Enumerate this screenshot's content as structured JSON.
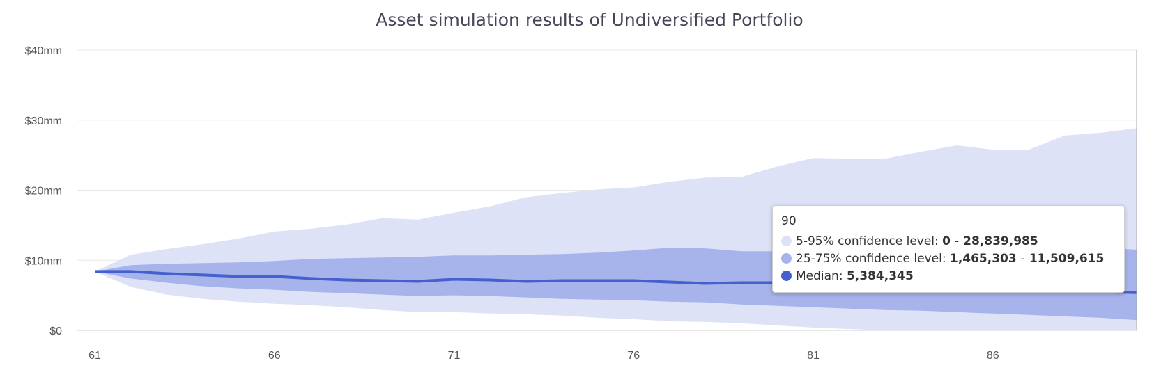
{
  "chart_data": {
    "type": "area",
    "title": "Asset simulation results of Undiversified Portfolio",
    "xlabel": "",
    "ylabel": "",
    "xlim": [
      61,
      90
    ],
    "ylim": [
      0,
      40000000
    ],
    "yticks": [
      {
        "value": 0,
        "label": "$0"
      },
      {
        "value": 10000000,
        "label": "$10mm"
      },
      {
        "value": 20000000,
        "label": "$20mm"
      },
      {
        "value": 30000000,
        "label": "$30mm"
      },
      {
        "value": 40000000,
        "label": "$40mm"
      }
    ],
    "xticks": [
      {
        "value": 61,
        "label": "61"
      },
      {
        "value": 66,
        "label": "66"
      },
      {
        "value": 71,
        "label": "71"
      },
      {
        "value": 76,
        "label": "76"
      },
      {
        "value": 81,
        "label": "81"
      },
      {
        "value": 86,
        "label": "86"
      }
    ],
    "grid": true,
    "legend": "none",
    "x": [
      61,
      62,
      63,
      64,
      65,
      66,
      67,
      68,
      69,
      70,
      71,
      72,
      73,
      74,
      75,
      76,
      77,
      78,
      79,
      80,
      81,
      82,
      83,
      84,
      85,
      86,
      87,
      88,
      89,
      90
    ],
    "series": [
      {
        "name": "5-95% confidence level",
        "low": [
          8400000,
          6200000,
          5100000,
          4500000,
          4100000,
          3800000,
          3600000,
          3300000,
          2900000,
          2600000,
          2600000,
          2400000,
          2300000,
          2100000,
          1800000,
          1600000,
          1300000,
          1200000,
          1000000,
          700000,
          400000,
          200000,
          0,
          0,
          0,
          0,
          0,
          0,
          0,
          0
        ],
        "high": [
          8400000,
          10800000,
          11600000,
          12300000,
          13100000,
          14100000,
          14500000,
          15100000,
          16000000,
          15800000,
          16800000,
          17700000,
          19000000,
          19600000,
          20100000,
          20400000,
          21200000,
          21800000,
          21900000,
          23400000,
          24600000,
          24500000,
          24500000,
          25500000,
          26400000,
          25800000,
          25800000,
          27800000,
          28200000,
          28839985
        ],
        "color": "#dde2f7"
      },
      {
        "name": "25-75% confidence level",
        "low": [
          8400000,
          7400000,
          6800000,
          6300000,
          6000000,
          5800000,
          5500000,
          5300000,
          5100000,
          4900000,
          5000000,
          4900000,
          4700000,
          4500000,
          4400000,
          4300000,
          4100000,
          4000000,
          3700000,
          3500000,
          3300000,
          3100000,
          2900000,
          2800000,
          2600000,
          2400000,
          2200000,
          2000000,
          1800000,
          1465303
        ],
        "high": [
          8400000,
          9300000,
          9500000,
          9600000,
          9700000,
          9900000,
          10200000,
          10300000,
          10400000,
          10500000,
          10700000,
          10700000,
          10800000,
          10900000,
          11100000,
          11400000,
          11800000,
          11700000,
          11300000,
          11300000,
          11500000,
          11600000,
          11700000,
          11800000,
          12000000,
          12100000,
          12000000,
          11900000,
          11800000,
          11509615
        ],
        "color": "#a7b4ec"
      },
      {
        "name": "Median",
        "values": [
          8400000,
          8400000,
          8100000,
          7900000,
          7700000,
          7700000,
          7400000,
          7200000,
          7100000,
          7000000,
          7300000,
          7200000,
          7000000,
          7100000,
          7100000,
          7100000,
          6900000,
          6700000,
          6800000,
          6800000,
          6700000,
          6600000,
          6500000,
          6400000,
          6300000,
          6100000,
          5800000,
          5500000,
          5500000,
          5384345
        ],
        "color": "#4560cc"
      }
    ],
    "hover_x": 90
  },
  "tooltip": {
    "header": "90",
    "rows": [
      {
        "label": "5-95% confidence level: ",
        "low": "0",
        "sep": "-",
        "high": "28,839,985",
        "color": "#dde2f7"
      },
      {
        "label": "25-75% confidence level: ",
        "low": "1,465,303",
        "sep": "-",
        "high": "11,509,615",
        "color": "#a7b4ec"
      },
      {
        "label": "Median: ",
        "value": "5,384,345",
        "color": "#4560cc"
      }
    ]
  }
}
